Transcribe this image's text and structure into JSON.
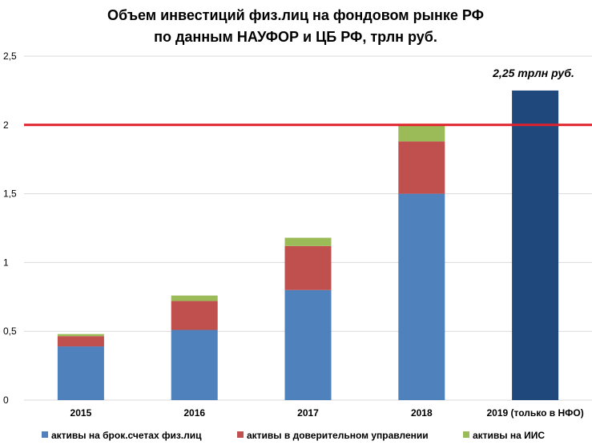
{
  "chart_data": {
    "type": "bar",
    "stacked": true,
    "title": [
      "Объем инвестиций физ.лиц на фондовом рынке РФ",
      "по данным НАУФОР и ЦБ РФ, трлн руб."
    ],
    "categories": [
      "2015",
      "2016",
      "2017",
      "2018",
      "2019 (только в НФО)"
    ],
    "series": [
      {
        "name": "активы на брок.счетах физ.лиц",
        "color": "#4f81bd",
        "values": [
          0.39,
          0.51,
          0.8,
          1.5,
          null
        ]
      },
      {
        "name": "активы в доверительном управлении",
        "color": "#c0504d",
        "values": [
          0.075,
          0.21,
          0.32,
          0.38,
          null
        ]
      },
      {
        "name": "активы на ИИС",
        "color": "#9bbb59",
        "values": [
          0.015,
          0.04,
          0.06,
          0.12,
          null
        ]
      }
    ],
    "single_bar": {
      "category": "2019 (только в НФО)",
      "value": 2.25,
      "color": "#1f497d"
    },
    "annotation": "2,25 трлн руб.",
    "reference_line": {
      "value": 2.0,
      "color": "#e0202a"
    },
    "yticks": [
      "0",
      "0,5",
      "1",
      "1,5",
      "2",
      "2,5"
    ],
    "ylim": [
      0,
      2.5
    ],
    "grid": true,
    "legend_position": "bottom"
  }
}
